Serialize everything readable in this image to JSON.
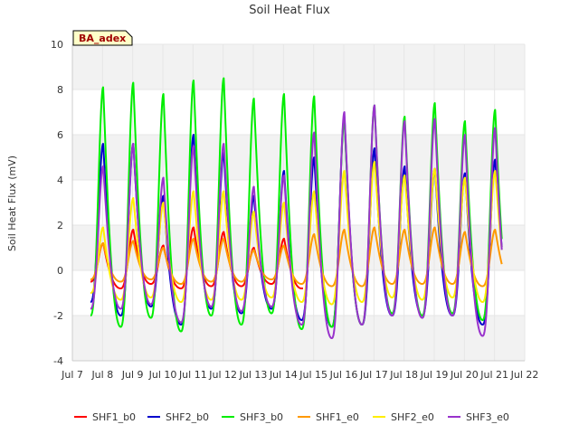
{
  "chart_data": {
    "type": "line",
    "title": "Soil Heat Flux",
    "ylabel": "Soil Heat Flux (mV)",
    "xlabel": "",
    "badge": "BA_adex",
    "xlim": [
      7,
      22
    ],
    "ylim": [
      -4,
      10
    ],
    "x_ticks": [
      {
        "v": 7,
        "label": "Jul 7"
      },
      {
        "v": 8,
        "label": "Jul 8"
      },
      {
        "v": 9,
        "label": "Jul 9"
      },
      {
        "v": 10,
        "label": "Jul 10"
      },
      {
        "v": 11,
        "label": "Jul 11"
      },
      {
        "v": 12,
        "label": "Jul 12"
      },
      {
        "v": 13,
        "label": "Jul 13"
      },
      {
        "v": 14,
        "label": "Jul 14"
      },
      {
        "v": 15,
        "label": "Jul 15"
      },
      {
        "v": 16,
        "label": "Jul 16"
      },
      {
        "v": 17,
        "label": "Jul 17"
      },
      {
        "v": 18,
        "label": "Jul 18"
      },
      {
        "v": 19,
        "label": "Jul 19"
      },
      {
        "v": 20,
        "label": "Jul 20"
      },
      {
        "v": 21,
        "label": "Jul 21"
      },
      {
        "v": 22,
        "label": "Jul 22"
      }
    ],
    "y_ticks": [
      {
        "v": -4,
        "label": "-4"
      },
      {
        "v": -2,
        "label": "-2"
      },
      {
        "v": 0,
        "label": "0"
      },
      {
        "v": 2,
        "label": "2"
      },
      {
        "v": 4,
        "label": "4"
      },
      {
        "v": 6,
        "label": "6"
      },
      {
        "v": 8,
        "label": "8"
      },
      {
        "v": 10,
        "label": "10"
      }
    ],
    "bands": [
      [
        8,
        10
      ],
      [
        4,
        6
      ],
      [
        0,
        2
      ],
      [
        -4,
        -2
      ]
    ],
    "x_start": 7.6,
    "x_end": 21.25,
    "days": [
      7.6,
      8.6,
      9.6,
      10.6,
      11.6,
      12.6,
      13.6,
      14.6,
      15.6,
      16.6,
      17.6,
      18.6,
      19.6,
      20.6
    ],
    "series": [
      {
        "name": "SHF1_b0",
        "color": "#ff0000",
        "peaks": [
          1.2,
          1.8,
          1.1,
          1.9,
          1.7,
          1.0,
          1.4
        ],
        "troughs": [
          -0.5,
          -0.8,
          -0.6,
          -0.8,
          -0.7,
          -0.7,
          -0.6,
          -0.8
        ]
      },
      {
        "name": "SHF2_b0",
        "color": "#0000cc",
        "peaks": [
          5.6,
          5.6,
          3.3,
          6.0,
          5.2,
          3.3,
          4.4,
          5.0,
          6.8,
          5.4,
          4.6,
          4.5,
          4.3,
          4.9
        ],
        "troughs": [
          -1.4,
          -2.0,
          -1.6,
          -2.4,
          -1.7,
          -1.9,
          -1.7,
          -2.2,
          -2.5,
          -2.4,
          -2.0,
          -2.0,
          -2.0,
          -2.4,
          -1.2
        ]
      },
      {
        "name": "SHF3_b0",
        "color": "#00ee00",
        "peaks": [
          8.1,
          8.3,
          7.8,
          8.4,
          8.5,
          7.6,
          7.8,
          7.7,
          6.7,
          7.3,
          6.8,
          7.4,
          6.6,
          7.1
        ],
        "troughs": [
          -2.0,
          -2.5,
          -2.1,
          -2.7,
          -2.0,
          -2.4,
          -1.9,
          -2.6,
          -2.5,
          -2.4,
          -1.9,
          -2.0,
          -1.9,
          -2.2,
          -1.9
        ]
      },
      {
        "name": "SHF1_e0",
        "color": "#ff9900",
        "peaks": [
          1.2,
          1.3,
          1.0,
          1.4,
          1.4,
          0.9,
          1.1,
          1.6,
          1.8,
          1.9,
          1.8,
          1.9,
          1.7,
          1.8
        ],
        "troughs": [
          -0.4,
          -0.5,
          -0.4,
          -0.6,
          -0.5,
          -0.5,
          -0.4,
          -0.6,
          -0.7,
          -0.7,
          -0.6,
          -0.6,
          -0.6,
          -0.7,
          -0.6
        ]
      },
      {
        "name": "SHF2_e0",
        "color": "#ffee00",
        "peaks": [
          1.9,
          3.2,
          3.0,
          3.5,
          3.5,
          2.6,
          3.0,
          3.5,
          4.4,
          4.8,
          4.2,
          4.5,
          4.1,
          4.4
        ],
        "troughs": [
          -1.0,
          -1.3,
          -1.2,
          -1.4,
          -1.3,
          -1.3,
          -1.2,
          -1.4,
          -1.5,
          -1.4,
          -1.2,
          -1.3,
          -1.2,
          -1.4,
          -1.1
        ]
      },
      {
        "name": "SHF3_e0",
        "color": "#9933cc",
        "peaks": [
          4.6,
          5.6,
          4.1,
          5.5,
          5.6,
          3.7,
          4.2,
          6.1,
          7.0,
          7.3,
          6.6,
          6.7,
          6.0,
          6.3
        ],
        "troughs": [
          -1.7,
          -1.7,
          -1.5,
          -2.3,
          -1.6,
          -1.8,
          -1.6,
          -2.4,
          -3.0,
          -2.4,
          -2.0,
          -2.1,
          -2.0,
          -2.9,
          -2.2
        ]
      }
    ]
  }
}
